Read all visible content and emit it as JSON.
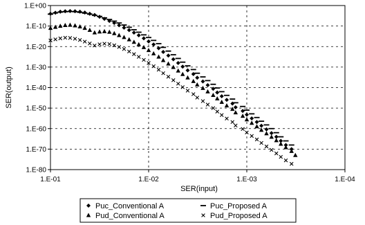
{
  "chart_data": {
    "type": "scatter",
    "title": "",
    "xlabel": "SER(input)",
    "ylabel": "SER(output)",
    "x_scale": "log",
    "x_reversed": true,
    "y_scale": "log",
    "xlim": [
      0.1,
      0.0001
    ],
    "ylim": [
      1e-80,
      1
    ],
    "x_ticks": [
      {
        "value": 0.1,
        "label": "1.E-01"
      },
      {
        "value": 0.01,
        "label": "1.E-02"
      },
      {
        "value": 0.001,
        "label": "1.E-03"
      },
      {
        "value": 0.0001,
        "label": "1.E-04"
      }
    ],
    "y_ticks": [
      {
        "value": 1,
        "label": "1.E+00"
      },
      {
        "value": 1e-10,
        "label": "1.E-10"
      },
      {
        "value": 1e-20,
        "label": "1.E-20"
      },
      {
        "value": 1e-30,
        "label": "1.E-30"
      },
      {
        "value": 1e-40,
        "label": "1.E-40"
      },
      {
        "value": 1e-50,
        "label": "1.E-50"
      },
      {
        "value": 1e-60,
        "label": "1.E-60"
      },
      {
        "value": 1e-70,
        "label": "1.E-70"
      },
      {
        "value": 1e-80,
        "label": "1.E-80"
      }
    ],
    "grid": "dashed",
    "legend_position": "bottom",
    "series": [
      {
        "name": "Puc_Conventional A",
        "marker": "diamond",
        "x": [
          0.1,
          0.0891,
          0.0794,
          0.0708,
          0.0631,
          0.0562,
          0.0501,
          0.0447,
          0.0398,
          0.0355,
          0.0316,
          0.0282,
          0.0251,
          0.0224,
          0.02,
          0.0178,
          0.0158,
          0.0141,
          0.0126,
          0.0112,
          0.01,
          0.0089,
          0.0079,
          0.0071,
          0.0063,
          0.0056,
          0.005,
          0.0045,
          0.004,
          0.0035,
          0.0032,
          0.0028,
          0.0025,
          0.0022,
          0.002,
          0.0018,
          0.0016,
          0.0014,
          0.0013,
          0.0011,
          0.001,
          0.00089,
          0.00079,
          0.00071,
          0.00063,
          0.00056,
          0.0005,
          0.00045,
          0.0004,
          0.00035
        ],
        "y": [
          -4,
          -3.5,
          -3,
          -2.8,
          -2.7,
          -2.8,
          -3,
          -3.4,
          -4,
          -4.6,
          -5.5,
          -6.5,
          -7.5,
          -8.5,
          -9.6,
          -10.8,
          -12,
          -13.2,
          -14.5,
          -16,
          -17.5,
          -19,
          -20.8,
          -22.6,
          -24.4,
          -26.2,
          -28,
          -29.8,
          -31.6,
          -33.4,
          -35.2,
          -37,
          -38.8,
          -40.6,
          -42.4,
          -44.2,
          -46,
          -47.8,
          -49.6,
          -51.4,
          -53.2,
          -55,
          -56.8,
          -58.6,
          -60.4,
          -62.2,
          -64,
          -66,
          -68,
          -70
        ]
      },
      {
        "name": "Puc_Proposed A",
        "marker": "dash",
        "x": [
          0.1,
          0.0891,
          0.0794,
          0.0708,
          0.0631,
          0.0562,
          0.0501,
          0.0447,
          0.0398,
          0.0355,
          0.0316,
          0.0282,
          0.0251,
          0.0224,
          0.02,
          0.0178,
          0.0158,
          0.0141,
          0.0126,
          0.0112,
          0.01,
          0.0089,
          0.0079,
          0.0071,
          0.0063,
          0.0056,
          0.005,
          0.0045,
          0.004,
          0.0035,
          0.0032,
          0.0028,
          0.0025,
          0.0022,
          0.002,
          0.0018,
          0.0016,
          0.0014,
          0.0013,
          0.0011,
          0.001,
          0.00089,
          0.00079,
          0.00071,
          0.00063,
          0.00056,
          0.0005,
          0.00045,
          0.0004,
          0.00035
        ],
        "y": [
          -4.2,
          -3.6,
          -3.2,
          -3,
          -2.9,
          -3,
          -3.3,
          -3.7,
          -4.2,
          -4.8,
          -5.3,
          -6,
          -6.8,
          -7.6,
          -8.5,
          -9.5,
          -10.6,
          -11.8,
          -13,
          -14.3,
          -15.6,
          -17,
          -18.6,
          -20.4,
          -22.2,
          -24,
          -25.8,
          -27.6,
          -29.4,
          -31.2,
          -33,
          -34.8,
          -36.6,
          -38.4,
          -40.2,
          -42,
          -43.8,
          -45.6,
          -47.4,
          -49.2,
          -51,
          -52.8,
          -54.6,
          -56.4,
          -58.2,
          -60,
          -62,
          -64,
          -66,
          -68
        ]
      },
      {
        "name": "Pud_Conventional A",
        "marker": "triangle",
        "x": [
          0.1,
          0.0891,
          0.0794,
          0.0708,
          0.0631,
          0.0562,
          0.0501,
          0.0447,
          0.0398,
          0.0355,
          0.0316,
          0.0282,
          0.0251,
          0.0224,
          0.02,
          0.0178,
          0.0158,
          0.0141,
          0.0126,
          0.0112,
          0.01,
          0.0089,
          0.0079,
          0.0071,
          0.0063,
          0.0056,
          0.005,
          0.0045,
          0.004,
          0.0035,
          0.0032,
          0.0028,
          0.0025,
          0.0022,
          0.002,
          0.0018,
          0.0016,
          0.0014,
          0.0013,
          0.0011,
          0.001,
          0.00089,
          0.00079,
          0.00071,
          0.00063,
          0.00056,
          0.0005,
          0.00045,
          0.0004,
          0.00035,
          0.00032
        ],
        "y": [
          -11,
          -10.5,
          -10,
          -9.6,
          -9.5,
          -9.8,
          -10.3,
          -11,
          -12,
          -13.2,
          -12.8,
          -12.6,
          -12.9,
          -13.6,
          -14.5,
          -15.5,
          -16.6,
          -17.8,
          -19,
          -20.4,
          -21.8,
          -23.4,
          -25,
          -26.7,
          -28.4,
          -30.1,
          -31.8,
          -33.5,
          -35.2,
          -36.9,
          -38.6,
          -40.3,
          -42,
          -43.7,
          -45.4,
          -47.1,
          -48.8,
          -50.5,
          -52.2,
          -53.9,
          -55.6,
          -57.3,
          -59,
          -60.7,
          -62.4,
          -64.1,
          -65.8,
          -67.5,
          -69.2,
          -71,
          -73
        ]
      },
      {
        "name": "Pud_Proposed A",
        "marker": "x",
        "x": [
          0.1,
          0.0891,
          0.0794,
          0.0708,
          0.0631,
          0.0562,
          0.0501,
          0.0447,
          0.0398,
          0.0355,
          0.0316,
          0.0282,
          0.0251,
          0.0224,
          0.02,
          0.0178,
          0.0158,
          0.0141,
          0.0126,
          0.0112,
          0.01,
          0.0089,
          0.0079,
          0.0071,
          0.0063,
          0.0056,
          0.005,
          0.0045,
          0.004,
          0.0035,
          0.0032,
          0.0028,
          0.0025,
          0.0022,
          0.002,
          0.0018,
          0.0016,
          0.0014,
          0.0013,
          0.0011,
          0.001,
          0.00089,
          0.00079,
          0.00071,
          0.00063,
          0.00056,
          0.0005,
          0.00045,
          0.0004,
          0.00035
        ],
        "y": [
          -17,
          -16.5,
          -16,
          -15.7,
          -15.8,
          -16.2,
          -16.8,
          -17.6,
          -18.5,
          -19.5,
          -18.9,
          -18.6,
          -18.8,
          -19.4,
          -20.2,
          -21.2,
          -22.4,
          -23.7,
          -25,
          -26.5,
          -28,
          -29.6,
          -31.3,
          -33,
          -34.7,
          -36.4,
          -38.1,
          -39.8,
          -41.5,
          -43.2,
          -44.9,
          -46.6,
          -48.3,
          -50,
          -51.7,
          -53.4,
          -55.1,
          -56.8,
          -58.5,
          -60.2,
          -61.9,
          -63.6,
          -65.3,
          -67,
          -68.7,
          -70.4,
          -72.1,
          -73.8,
          -75.5,
          -77.2
        ]
      }
    ],
    "y_value_encoding": "log10"
  },
  "colors": {
    "marker": "#000000",
    "grid": "#000000",
    "frame": "#000000",
    "background": "#ffffff"
  }
}
